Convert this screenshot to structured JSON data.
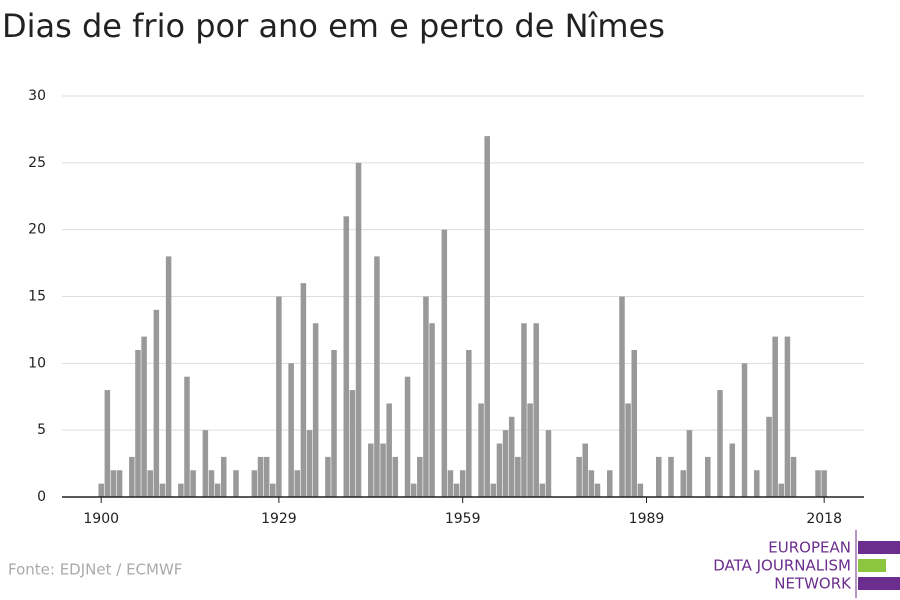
{
  "chart_data": {
    "type": "bar",
    "title": "Dias de frio por ano em e perto de Nîmes",
    "source": "Fonte: EDJNet / ECMWF",
    "logo": [
      "EUROPEAN",
      "DATA JOURNALISM",
      "NETWORK"
    ],
    "color": "#999999",
    "x": [
      1900,
      1901,
      1902,
      1903,
      1904,
      1905,
      1906,
      1907,
      1908,
      1909,
      1910,
      1911,
      1912,
      1913,
      1914,
      1915,
      1916,
      1917,
      1918,
      1919,
      1920,
      1921,
      1922,
      1923,
      1924,
      1925,
      1926,
      1927,
      1928,
      1929,
      1930,
      1931,
      1932,
      1933,
      1934,
      1935,
      1936,
      1937,
      1938,
      1939,
      1940,
      1941,
      1942,
      1943,
      1944,
      1945,
      1946,
      1947,
      1948,
      1949,
      1950,
      1951,
      1952,
      1953,
      1954,
      1955,
      1956,
      1957,
      1958,
      1959,
      1960,
      1961,
      1962,
      1963,
      1964,
      1965,
      1966,
      1967,
      1968,
      1969,
      1970,
      1971,
      1972,
      1973,
      1974,
      1975,
      1976,
      1977,
      1978,
      1979,
      1980,
      1981,
      1982,
      1983,
      1984,
      1985,
      1986,
      1987,
      1988,
      1989,
      1990,
      1991,
      1992,
      1993,
      1994,
      1995,
      1996,
      1997,
      1998,
      1999,
      2000,
      2001,
      2002,
      2003,
      2004,
      2005,
      2006,
      2007,
      2008,
      2009,
      2010,
      2011,
      2012,
      2013,
      2014,
      2015,
      2016,
      2017,
      2018
    ],
    "values": [
      1,
      8,
      2,
      2,
      0,
      3,
      11,
      12,
      2,
      14,
      1,
      18,
      0,
      1,
      9,
      2,
      0,
      5,
      2,
      1,
      3,
      0,
      2,
      0,
      0,
      2,
      3,
      3,
      1,
      15,
      0,
      10,
      2,
      16,
      5,
      13,
      0,
      3,
      11,
      0,
      21,
      8,
      25,
      0,
      4,
      18,
      4,
      7,
      3,
      0,
      9,
      1,
      3,
      15,
      13,
      0,
      20,
      2,
      1,
      2,
      11,
      0,
      7,
      27,
      1,
      4,
      5,
      6,
      3,
      13,
      7,
      13,
      1,
      5,
      0,
      0,
      0,
      0,
      3,
      4,
      2,
      1,
      0,
      2,
      0,
      15,
      7,
      11,
      1,
      0,
      0,
      3,
      0,
      3,
      0,
      2,
      5,
      0,
      0,
      3,
      0,
      8,
      0,
      4,
      0,
      10,
      0,
      2,
      0,
      6,
      12,
      1,
      12,
      3,
      0,
      0,
      0,
      2,
      2
    ],
    "xlim": [
      1893.6,
      2024.5
    ],
    "xticks": [
      1900,
      1929,
      1959,
      1989,
      2018
    ],
    "ylim": [
      0,
      30
    ],
    "yticks": [
      0,
      5,
      10,
      15,
      20,
      25,
      30
    ],
    "grid": true
  }
}
